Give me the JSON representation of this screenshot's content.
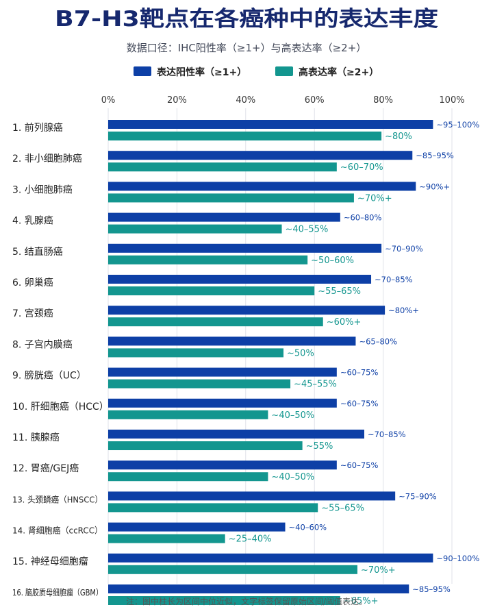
{
  "chart_data": {
    "type": "bar",
    "orientation": "horizontal",
    "title": "B7-H3靶点在各癌种中的表达丰度",
    "subtitle": "数据口径：IHC阳性率（≥1+）与高表达率（≥2+）",
    "xlim": [
      0,
      100
    ],
    "x_ticks": [
      "0%",
      "20%",
      "40%",
      "60%",
      "80%",
      "100%"
    ],
    "grid": true,
    "legend_position": "top",
    "categories": [
      "1. 前列腺癌",
      "2. 非小细胞肺癌",
      "3. 小细胞肺癌",
      "4. 乳腺癌",
      "5. 结直肠癌",
      "6. 卵巢癌",
      "7. 宫颈癌",
      "8. 子宫内膜癌",
      "9. 膀胱癌（UC）",
      "10. 肝细胞癌（HCC）",
      "11. 胰腺癌",
      "12. 胃癌/GEJ癌",
      "13. 头颈鳞癌（HNSCC）",
      "14. 肾细胞癌（ccRCC）",
      "15. 神经母细胞瘤",
      "16. 脑胶质母细胞瘤（GBM）"
    ],
    "series": [
      {
        "name": "表达阳性率（≥1+）",
        "color": "#0d3fa6",
        "values": [
          94.5,
          88.5,
          89.5,
          67.5,
          79.5,
          76.5,
          80.5,
          72,
          66.5,
          66.5,
          74.5,
          66.5,
          83.5,
          51.5,
          94.5,
          87.5
        ],
        "labels": [
          "~95–100%",
          "~85–95%",
          "~90%+",
          "~60–80%",
          "~70–90%",
          "~70–85%",
          "~80%+",
          "~65–80%",
          "~60–75%",
          "~60–75%",
          "~70–85%",
          "~60–75%",
          "~75–90%",
          "~40–60%",
          "~90–100%",
          "~85–95%"
        ]
      },
      {
        "name": "高表达率（≥2+）",
        "color": "#13968f",
        "values": [
          79.5,
          66.5,
          71.5,
          50.5,
          58,
          60,
          62.5,
          51,
          53,
          46.5,
          56.5,
          46.5,
          61,
          34,
          72.5,
          67.5
        ],
        "labels": [
          "~80%",
          "~60–70%",
          "~70%+",
          "~40–55%",
          "~50–60%",
          "~55–65%",
          "~60%+",
          "~50%",
          "~45–55%",
          "~40–50%",
          "~55%",
          "~40–50%",
          "~55–65%",
          "~25–40%",
          "~70%+",
          "~65%+"
        ]
      }
    ]
  },
  "footnote": "注：图中柱长为区间中位近似，文字标签保留原始区间/阈值表达。"
}
